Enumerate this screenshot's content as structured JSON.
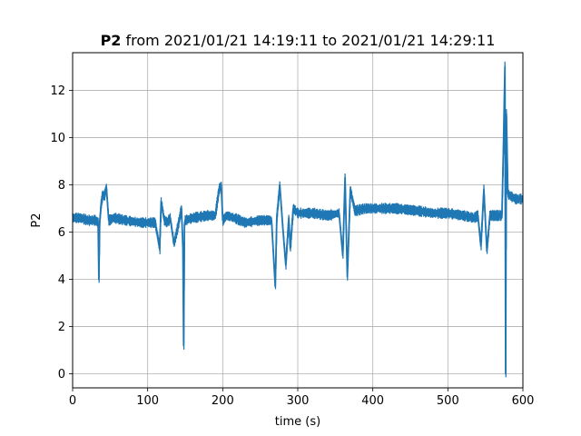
{
  "chart_data": {
    "type": "line",
    "title": {
      "series_name": "P2",
      "rest": " from 2021/01/21 14:19:11 to 2021/01/21 14:29:11"
    },
    "xlabel": "time (s)",
    "ylabel": "P2",
    "xlim": [
      0,
      600
    ],
    "ylim": [
      -0.6,
      13.6
    ],
    "xticks": [
      0,
      100,
      200,
      300,
      400,
      500,
      600
    ],
    "yticks": [
      0,
      2,
      4,
      6,
      8,
      10,
      12
    ],
    "xtick_labels": [
      "0",
      "100",
      "200",
      "300",
      "400",
      "500",
      "600"
    ],
    "ytick_labels": [
      "0",
      "2",
      "4",
      "6",
      "8",
      "10",
      "12"
    ],
    "grid": true,
    "series": [
      {
        "color": "#1f77b4",
        "points": [
          [
            0,
            6.6
          ],
          [
            10,
            6.6
          ],
          [
            20,
            6.5
          ],
          [
            30,
            6.5
          ],
          [
            34,
            6.4
          ],
          [
            35,
            4.0
          ],
          [
            36,
            6.4
          ],
          [
            38,
            7.2
          ],
          [
            40,
            7.6
          ],
          [
            42,
            7.5
          ],
          [
            45,
            7.9
          ],
          [
            48,
            6.5
          ],
          [
            55,
            6.6
          ],
          [
            70,
            6.5
          ],
          [
            90,
            6.4
          ],
          [
            110,
            6.4
          ],
          [
            116,
            5.3
          ],
          [
            118,
            7.3
          ],
          [
            122,
            6.5
          ],
          [
            126,
            6.4
          ],
          [
            130,
            6.6
          ],
          [
            135,
            5.5
          ],
          [
            140,
            6.2
          ],
          [
            145,
            7.0
          ],
          [
            147,
            5.3
          ],
          [
            148,
            1.2
          ],
          [
            149,
            6.3
          ],
          [
            150,
            6.5
          ],
          [
            160,
            6.6
          ],
          [
            180,
            6.7
          ],
          [
            190,
            6.7
          ],
          [
            195,
            7.8
          ],
          [
            198,
            8.0
          ],
          [
            200,
            6.5
          ],
          [
            205,
            6.7
          ],
          [
            215,
            6.6
          ],
          [
            230,
            6.4
          ],
          [
            250,
            6.5
          ],
          [
            265,
            6.5
          ],
          [
            270,
            3.7
          ],
          [
            272,
            6.6
          ],
          [
            276,
            8.0
          ],
          [
            280,
            6.2
          ],
          [
            284,
            4.6
          ],
          [
            288,
            6.6
          ],
          [
            290,
            5.3
          ],
          [
            294,
            7.0
          ],
          [
            300,
            6.8
          ],
          [
            320,
            6.8
          ],
          [
            340,
            6.7
          ],
          [
            355,
            6.8
          ],
          [
            360,
            5.0
          ],
          [
            363,
            8.3
          ],
          [
            366,
            4.1
          ],
          [
            370,
            7.8
          ],
          [
            376,
            6.9
          ],
          [
            390,
            7.0
          ],
          [
            410,
            7.0
          ],
          [
            430,
            7.0
          ],
          [
            460,
            6.9
          ],
          [
            480,
            6.8
          ],
          [
            500,
            6.8
          ],
          [
            520,
            6.7
          ],
          [
            535,
            6.6
          ],
          [
            540,
            6.7
          ],
          [
            544,
            5.4
          ],
          [
            548,
            7.8
          ],
          [
            552,
            5.2
          ],
          [
            556,
            6.7
          ],
          [
            565,
            6.7
          ],
          [
            572,
            6.7
          ],
          [
            574,
            9.5
          ],
          [
            576,
            13.0
          ],
          [
            577,
            0.0
          ],
          [
            578,
            11.0
          ],
          [
            580,
            7.6
          ],
          [
            590,
            7.4
          ],
          [
            600,
            7.4
          ]
        ]
      }
    ]
  }
}
